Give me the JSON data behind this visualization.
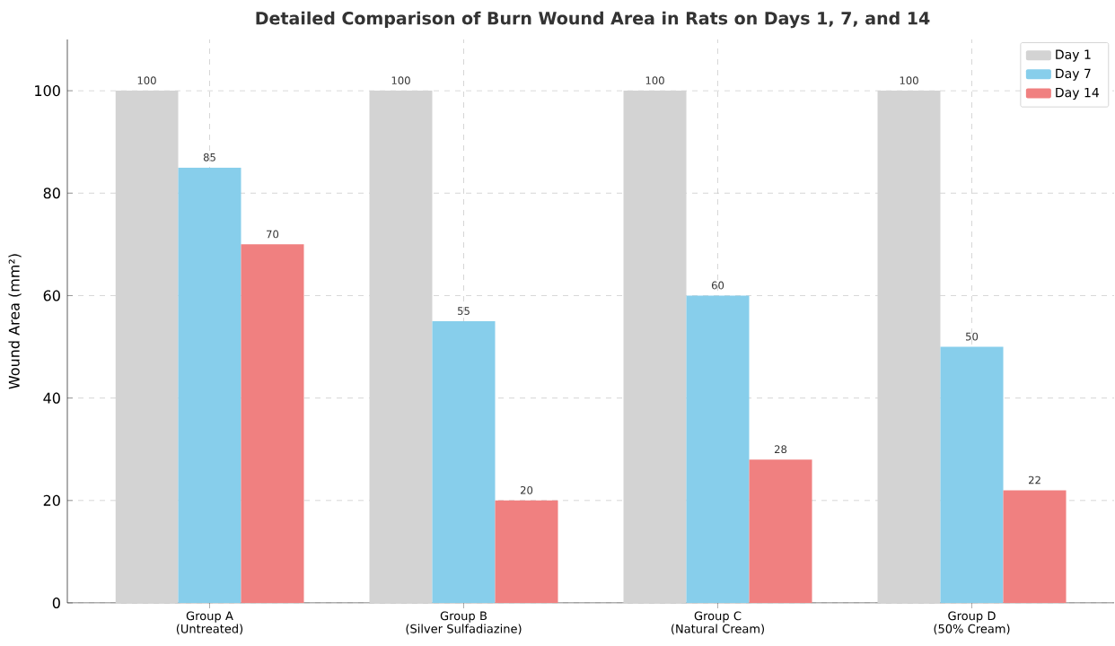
{
  "chart_data": {
    "type": "bar",
    "title": "Detailed Comparison of Burn Wound Area in Rats on Days 1, 7, and 14",
    "ylabel": "Wound Area (mm²)",
    "categories": [
      "Group A\n(Untreated)",
      "Group B\n(Silver Sulfadiazine)",
      "Group C\n(Natural Cream)",
      "Group D\n(50% Cream)"
    ],
    "series": [
      {
        "name": "Day 1",
        "color": "#d3d3d3",
        "values": [
          100,
          100,
          100,
          100
        ]
      },
      {
        "name": "Day 7",
        "color": "#87ceeb",
        "values": [
          85,
          55,
          60,
          50
        ]
      },
      {
        "name": "Day 14",
        "color": "#f08080",
        "values": [
          70,
          20,
          28,
          22
        ]
      }
    ],
    "ylim": [
      0,
      110
    ],
    "yticks": [
      0,
      20,
      40,
      60,
      80,
      100
    ],
    "grid": true,
    "legend": "top right",
    "data_labels": true
  }
}
